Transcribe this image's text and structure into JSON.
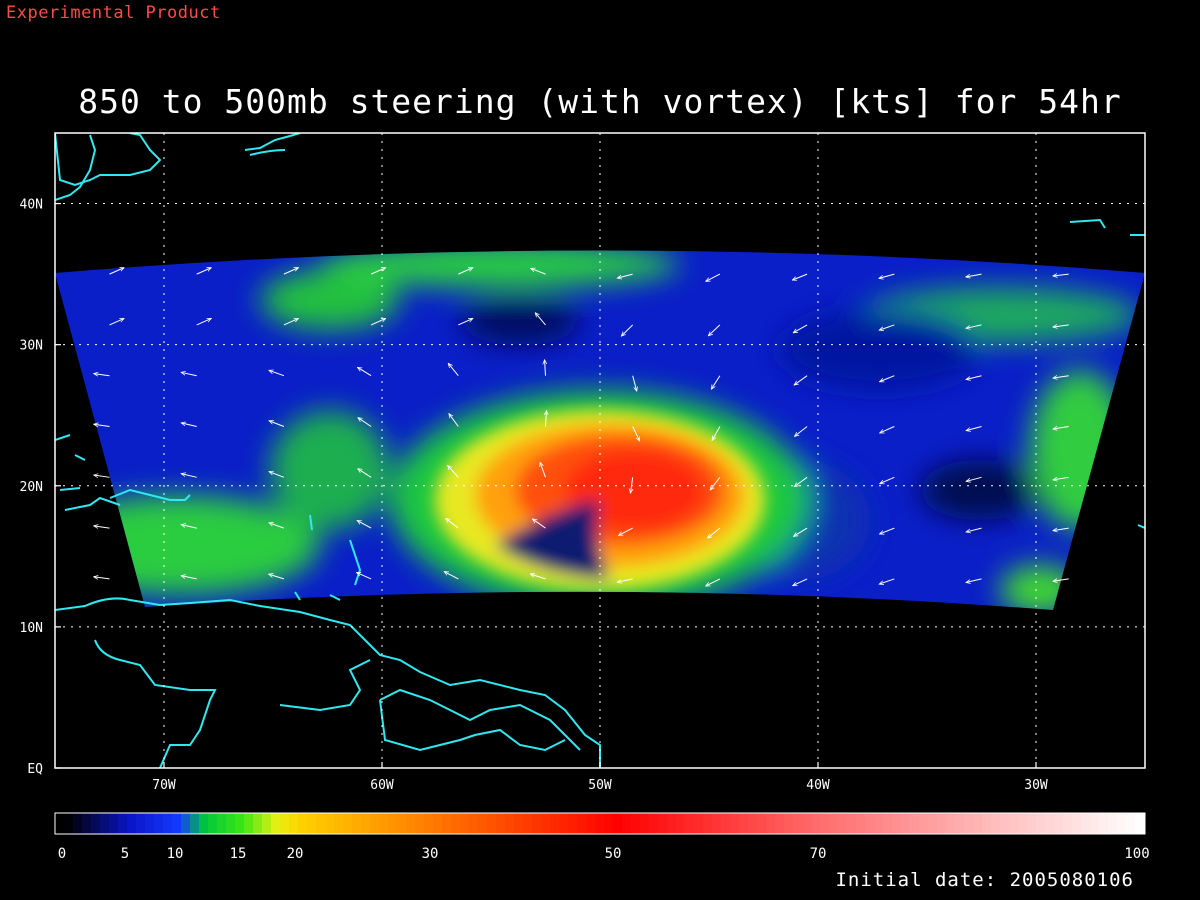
{
  "header": {
    "experimental_label": "Experimental Product",
    "title": "850 to 500mb steering (with vortex) [kts] for 54hr",
    "initial_date": "Initial date: 2005080106"
  },
  "map": {
    "lon_range": [
      -75,
      -25
    ],
    "lat_range": [
      0,
      45
    ],
    "lat_tick_labels": [
      "EQ",
      "10N",
      "20N",
      "30N",
      "40N"
    ],
    "lat_tick_values": [
      0,
      10,
      20,
      30,
      40
    ],
    "lon_tick_labels": [
      "70W",
      "60W",
      "50W",
      "40W",
      "30W"
    ],
    "lon_tick_values": [
      -70,
      -60,
      -50,
      -40,
      -30
    ],
    "grid": "dotted",
    "coastline_color": "#30e8f0",
    "vortex_center": {
      "lon": -50,
      "lat": 19.5
    },
    "colors": {
      "frame": "#ffffff",
      "background": "#000000"
    }
  },
  "colorbar": {
    "tick_labels": [
      "0",
      "5",
      "10",
      "15",
      "20",
      "30",
      "50",
      "70",
      "100"
    ],
    "tick_values": [
      0,
      5,
      10,
      15,
      20,
      30,
      50,
      70,
      100
    ]
  }
}
